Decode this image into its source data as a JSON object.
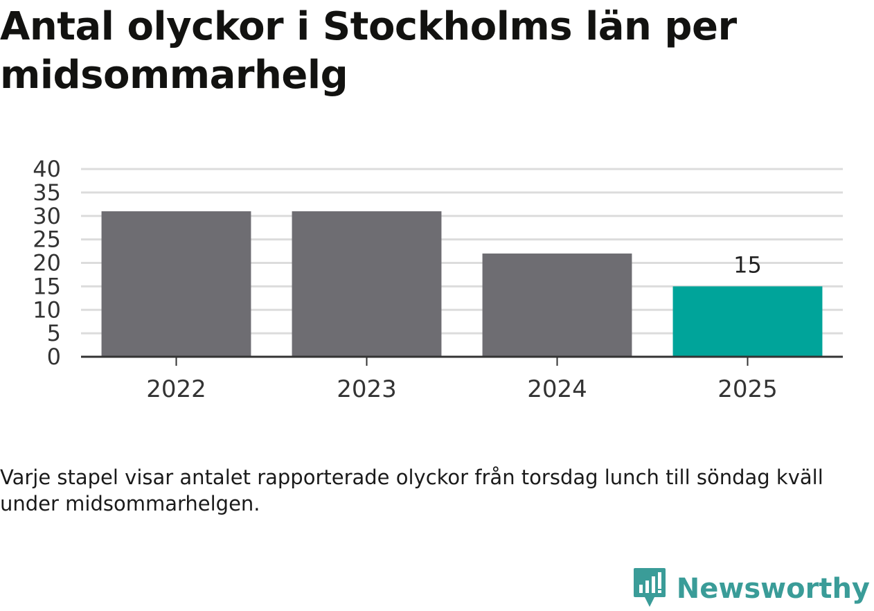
{
  "title": "Antal olyckor i Stockholms län per midsommarhelg",
  "caption": "Varje stapel visar antalet rapporterade olyckor från torsdag lunch till söndag kväll under midsommarhelgen.",
  "brand": {
    "name": "Newsworthy",
    "icon": "bar-chart-speech-bubble-icon"
  },
  "colors": {
    "default_bar": "#6e6d72",
    "highlight_bar": "#00a49a",
    "grid": "#dcdcdc",
    "axis": "#333333",
    "brand": "#3a9c98"
  },
  "chart_data": {
    "type": "bar",
    "categories": [
      "2022",
      "2023",
      "2024",
      "2025"
    ],
    "values": [
      31,
      31,
      22,
      15
    ],
    "highlight_index": 3,
    "data_labels": [
      "",
      "",
      "",
      "15"
    ],
    "title": "Antal olyckor i Stockholms län per midsommarhelg",
    "xlabel": "",
    "ylabel": "",
    "ylim": [
      0,
      40
    ],
    "yticks": [
      0,
      5,
      10,
      15,
      20,
      25,
      30,
      35,
      40
    ],
    "grid": true,
    "legend": "none"
  }
}
